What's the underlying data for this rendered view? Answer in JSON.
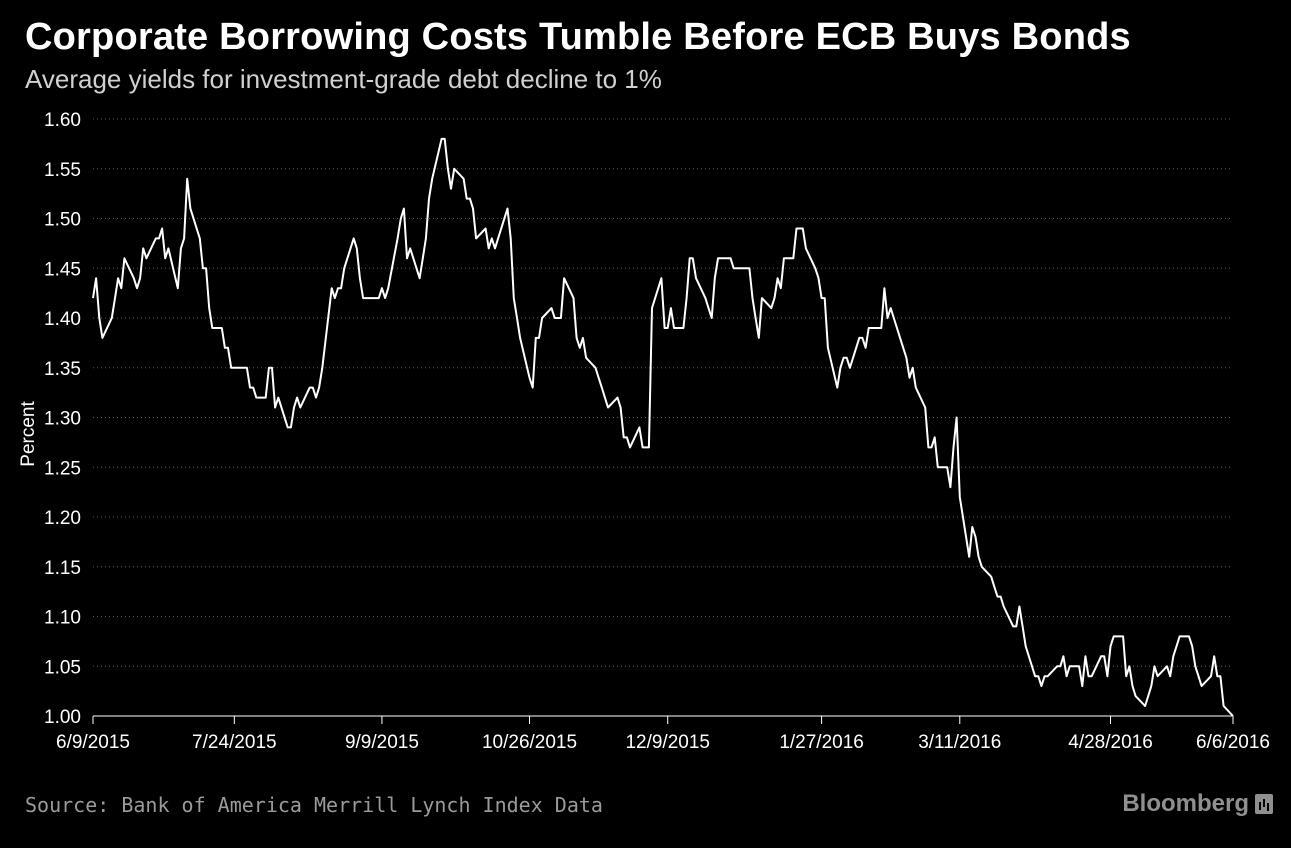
{
  "header": {
    "title": "Corporate Borrowing Costs Tumble Before ECB Buys Bonds",
    "subtitle": "Average yields for investment-grade debt decline to 1%"
  },
  "footer": {
    "source": "Source: Bank of America Merrill Lynch Index Data",
    "logo_text": "Bloomberg",
    "logo_icon": "bloomberg-terminal-icon"
  },
  "colors": {
    "background": "#000000",
    "line": "#ffffff",
    "grid": "#5a5a5a",
    "muted_text": "#9a9a9a"
  },
  "chart_data": {
    "type": "line",
    "title": "Corporate Borrowing Costs Tumble Before ECB Buys Bonds",
    "subtitle": "Average yields for investment-grade debt decline to 1%",
    "xlabel": "",
    "ylabel": "Percent",
    "ylim": [
      1.0,
      1.6
    ],
    "yticks": [
      1.0,
      1.05,
      1.1,
      1.15,
      1.2,
      1.25,
      1.3,
      1.35,
      1.4,
      1.45,
      1.5,
      1.55,
      1.6
    ],
    "ytick_labels": [
      "1.00",
      "1.05",
      "1.10",
      "1.15",
      "1.20",
      "1.25",
      "1.30",
      "1.35",
      "1.40",
      "1.45",
      "1.50",
      "1.55",
      "1.60"
    ],
    "xlim": [
      "6/9/2015",
      "6/6/2016"
    ],
    "xticks": [
      "6/9/2015",
      "7/24/2015",
      "9/9/2015",
      "10/26/2015",
      "12/9/2015",
      "1/27/2016",
      "3/11/2016",
      "4/28/2016",
      "6/6/2016"
    ],
    "grid": true,
    "legend": "none",
    "series": [
      {
        "points": [
          [
            "6/9/2015",
            1.42
          ],
          [
            "6/10/2015",
            1.44
          ],
          [
            "6/11/2015",
            1.4
          ],
          [
            "6/12/2015",
            1.38
          ],
          [
            "6/15/2015",
            1.4
          ],
          [
            "6/16/2015",
            1.42
          ],
          [
            "6/17/2015",
            1.44
          ],
          [
            "6/18/2015",
            1.43
          ],
          [
            "6/19/2015",
            1.46
          ],
          [
            "6/22/2015",
            1.44
          ],
          [
            "6/23/2015",
            1.43
          ],
          [
            "6/24/2015",
            1.44
          ],
          [
            "6/25/2015",
            1.47
          ],
          [
            "6/26/2015",
            1.46
          ],
          [
            "6/29/2015",
            1.48
          ],
          [
            "6/30/2015",
            1.48
          ],
          [
            "7/1/2015",
            1.49
          ],
          [
            "7/2/2015",
            1.46
          ],
          [
            "7/3/2015",
            1.47
          ],
          [
            "7/6/2015",
            1.43
          ],
          [
            "7/7/2015",
            1.47
          ],
          [
            "7/8/2015",
            1.48
          ],
          [
            "7/9/2015",
            1.54
          ],
          [
            "7/10/2015",
            1.51
          ],
          [
            "7/13/2015",
            1.48
          ],
          [
            "7/14/2015",
            1.45
          ],
          [
            "7/15/2015",
            1.45
          ],
          [
            "7/16/2015",
            1.41
          ],
          [
            "7/17/2015",
            1.39
          ],
          [
            "7/20/2015",
            1.39
          ],
          [
            "7/21/2015",
            1.37
          ],
          [
            "7/22/2015",
            1.37
          ],
          [
            "7/23/2015",
            1.35
          ],
          [
            "7/24/2015",
            1.35
          ],
          [
            "7/27/2015",
            1.35
          ],
          [
            "7/28/2015",
            1.35
          ],
          [
            "7/29/2015",
            1.33
          ],
          [
            "7/30/2015",
            1.33
          ],
          [
            "7/31/2015",
            1.32
          ],
          [
            "8/3/2015",
            1.32
          ],
          [
            "8/4/2015",
            1.35
          ],
          [
            "8/5/2015",
            1.35
          ],
          [
            "8/6/2015",
            1.31
          ],
          [
            "8/7/2015",
            1.32
          ],
          [
            "8/10/2015",
            1.29
          ],
          [
            "8/11/2015",
            1.29
          ],
          [
            "8/12/2015",
            1.31
          ],
          [
            "8/13/2015",
            1.32
          ],
          [
            "8/14/2015",
            1.31
          ],
          [
            "8/17/2015",
            1.33
          ],
          [
            "8/18/2015",
            1.33
          ],
          [
            "8/19/2015",
            1.32
          ],
          [
            "8/20/2015",
            1.33
          ],
          [
            "8/21/2015",
            1.35
          ],
          [
            "8/24/2015",
            1.43
          ],
          [
            "8/25/2015",
            1.42
          ],
          [
            "8/26/2015",
            1.43
          ],
          [
            "8/27/2015",
            1.43
          ],
          [
            "8/28/2015",
            1.45
          ],
          [
            "8/31/2015",
            1.48
          ],
          [
            "9/1/2015",
            1.47
          ],
          [
            "9/2/2015",
            1.44
          ],
          [
            "9/3/2015",
            1.42
          ],
          [
            "9/4/2015",
            1.42
          ],
          [
            "9/7/2015",
            1.42
          ],
          [
            "9/8/2015",
            1.42
          ],
          [
            "9/9/2015",
            1.43
          ],
          [
            "9/10/2015",
            1.42
          ],
          [
            "9/11/2015",
            1.43
          ],
          [
            "9/14/2015",
            1.48
          ],
          [
            "9/15/2015",
            1.5
          ],
          [
            "9/16/2015",
            1.51
          ],
          [
            "9/17/2015",
            1.46
          ],
          [
            "9/18/2015",
            1.47
          ],
          [
            "9/21/2015",
            1.44
          ],
          [
            "9/22/2015",
            1.46
          ],
          [
            "9/23/2015",
            1.48
          ],
          [
            "9/24/2015",
            1.52
          ],
          [
            "9/25/2015",
            1.54
          ],
          [
            "9/28/2015",
            1.58
          ],
          [
            "9/29/2015",
            1.58
          ],
          [
            "9/30/2015",
            1.55
          ],
          [
            "10/1/2015",
            1.53
          ],
          [
            "10/2/2015",
            1.55
          ],
          [
            "10/5/2015",
            1.54
          ],
          [
            "10/6/2015",
            1.52
          ],
          [
            "10/7/2015",
            1.52
          ],
          [
            "10/8/2015",
            1.51
          ],
          [
            "10/9/2015",
            1.48
          ],
          [
            "10/12/2015",
            1.49
          ],
          [
            "10/13/2015",
            1.47
          ],
          [
            "10/14/2015",
            1.48
          ],
          [
            "10/15/2015",
            1.47
          ],
          [
            "10/16/2015",
            1.48
          ],
          [
            "10/19/2015",
            1.51
          ],
          [
            "10/20/2015",
            1.48
          ],
          [
            "10/21/2015",
            1.42
          ],
          [
            "10/22/2015",
            1.4
          ],
          [
            "10/23/2015",
            1.38
          ],
          [
            "10/26/2015",
            1.34
          ],
          [
            "10/27/2015",
            1.33
          ],
          [
            "10/28/2015",
            1.38
          ],
          [
            "10/29/2015",
            1.38
          ],
          [
            "10/30/2015",
            1.4
          ],
          [
            "11/2/2015",
            1.41
          ],
          [
            "11/3/2015",
            1.4
          ],
          [
            "11/4/2015",
            1.4
          ],
          [
            "11/5/2015",
            1.4
          ],
          [
            "11/6/2015",
            1.44
          ],
          [
            "11/9/2015",
            1.42
          ],
          [
            "11/10/2015",
            1.38
          ],
          [
            "11/11/2015",
            1.37
          ],
          [
            "11/12/2015",
            1.38
          ],
          [
            "11/13/2015",
            1.36
          ],
          [
            "11/16/2015",
            1.35
          ],
          [
            "11/17/2015",
            1.34
          ],
          [
            "11/18/2015",
            1.33
          ],
          [
            "11/19/2015",
            1.32
          ],
          [
            "11/20/2015",
            1.31
          ],
          [
            "11/23/2015",
            1.32
          ],
          [
            "11/24/2015",
            1.31
          ],
          [
            "11/25/2015",
            1.28
          ],
          [
            "11/26/2015",
            1.28
          ],
          [
            "11/27/2015",
            1.27
          ],
          [
            "11/30/2015",
            1.29
          ],
          [
            "12/1/2015",
            1.27
          ],
          [
            "12/2/2015",
            1.27
          ],
          [
            "12/3/2015",
            1.27
          ],
          [
            "12/4/2015",
            1.41
          ],
          [
            "12/7/2015",
            1.44
          ],
          [
            "12/8/2015",
            1.39
          ],
          [
            "12/9/2015",
            1.39
          ],
          [
            "12/10/2015",
            1.41
          ],
          [
            "12/11/2015",
            1.39
          ],
          [
            "12/14/2015",
            1.39
          ],
          [
            "12/15/2015",
            1.42
          ],
          [
            "12/16/2015",
            1.46
          ],
          [
            "12/17/2015",
            1.46
          ],
          [
            "12/18/2015",
            1.44
          ],
          [
            "12/21/2015",
            1.42
          ],
          [
            "12/22/2015",
            1.41
          ],
          [
            "12/23/2015",
            1.4
          ],
          [
            "12/24/2015",
            1.44
          ],
          [
            "12/25/2015",
            1.46
          ],
          [
            "12/28/2015",
            1.46
          ],
          [
            "12/29/2015",
            1.46
          ],
          [
            "12/30/2015",
            1.45
          ],
          [
            "12/31/2015",
            1.45
          ],
          [
            "1/1/2016",
            1.45
          ],
          [
            "1/4/2016",
            1.45
          ],
          [
            "1/5/2016",
            1.42
          ],
          [
            "1/6/2016",
            1.4
          ],
          [
            "1/7/2016",
            1.38
          ],
          [
            "1/8/2016",
            1.42
          ],
          [
            "1/11/2016",
            1.41
          ],
          [
            "1/12/2016",
            1.42
          ],
          [
            "1/13/2016",
            1.44
          ],
          [
            "1/14/2016",
            1.43
          ],
          [
            "1/15/2016",
            1.46
          ],
          [
            "1/18/2016",
            1.46
          ],
          [
            "1/19/2016",
            1.49
          ],
          [
            "1/20/2016",
            1.49
          ],
          [
            "1/21/2016",
            1.49
          ],
          [
            "1/22/2016",
            1.47
          ],
          [
            "1/25/2016",
            1.45
          ],
          [
            "1/26/2016",
            1.44
          ],
          [
            "1/27/2016",
            1.42
          ],
          [
            "1/28/2016",
            1.42
          ],
          [
            "1/29/2016",
            1.37
          ],
          [
            "2/1/2016",
            1.33
          ],
          [
            "2/2/2016",
            1.35
          ],
          [
            "2/3/2016",
            1.36
          ],
          [
            "2/4/2016",
            1.36
          ],
          [
            "2/5/2016",
            1.35
          ],
          [
            "2/8/2016",
            1.38
          ],
          [
            "2/9/2016",
            1.38
          ],
          [
            "2/10/2016",
            1.37
          ],
          [
            "2/11/2016",
            1.39
          ],
          [
            "2/12/2016",
            1.39
          ],
          [
            "2/15/2016",
            1.39
          ],
          [
            "2/16/2016",
            1.43
          ],
          [
            "2/17/2016",
            1.4
          ],
          [
            "2/18/2016",
            1.41
          ],
          [
            "2/19/2016",
            1.4
          ],
          [
            "2/22/2016",
            1.37
          ],
          [
            "2/23/2016",
            1.36
          ],
          [
            "2/24/2016",
            1.34
          ],
          [
            "2/25/2016",
            1.35
          ],
          [
            "2/26/2016",
            1.33
          ],
          [
            "2/29/2016",
            1.31
          ],
          [
            "3/1/2016",
            1.27
          ],
          [
            "3/2/2016",
            1.27
          ],
          [
            "3/3/2016",
            1.28
          ],
          [
            "3/4/2016",
            1.25
          ],
          [
            "3/7/2016",
            1.25
          ],
          [
            "3/8/2016",
            1.23
          ],
          [
            "3/9/2016",
            1.27
          ],
          [
            "3/10/2016",
            1.3
          ],
          [
            "3/11/2016",
            1.22
          ],
          [
            "3/14/2016",
            1.16
          ],
          [
            "3/15/2016",
            1.19
          ],
          [
            "3/16/2016",
            1.18
          ],
          [
            "3/17/2016",
            1.16
          ],
          [
            "3/18/2016",
            1.15
          ],
          [
            "3/21/2016",
            1.14
          ],
          [
            "3/22/2016",
            1.13
          ],
          [
            "3/23/2016",
            1.12
          ],
          [
            "3/24/2016",
            1.12
          ],
          [
            "3/25/2016",
            1.11
          ],
          [
            "3/28/2016",
            1.09
          ],
          [
            "3/29/2016",
            1.09
          ],
          [
            "3/30/2016",
            1.11
          ],
          [
            "3/31/2016",
            1.09
          ],
          [
            "4/1/2016",
            1.07
          ],
          [
            "4/4/2016",
            1.04
          ],
          [
            "4/5/2016",
            1.04
          ],
          [
            "4/6/2016",
            1.03
          ],
          [
            "4/7/2016",
            1.04
          ],
          [
            "4/8/2016",
            1.04
          ],
          [
            "4/11/2016",
            1.05
          ],
          [
            "4/12/2016",
            1.05
          ],
          [
            "4/13/2016",
            1.06
          ],
          [
            "4/14/2016",
            1.04
          ],
          [
            "4/15/2016",
            1.05
          ],
          [
            "4/18/2016",
            1.05
          ],
          [
            "4/19/2016",
            1.03
          ],
          [
            "4/20/2016",
            1.06
          ],
          [
            "4/21/2016",
            1.04
          ],
          [
            "4/22/2016",
            1.04
          ],
          [
            "4/25/2016",
            1.06
          ],
          [
            "4/26/2016",
            1.06
          ],
          [
            "4/27/2016",
            1.04
          ],
          [
            "4/28/2016",
            1.07
          ],
          [
            "4/29/2016",
            1.08
          ],
          [
            "5/2/2016",
            1.08
          ],
          [
            "5/3/2016",
            1.04
          ],
          [
            "5/4/2016",
            1.05
          ],
          [
            "5/5/2016",
            1.03
          ],
          [
            "5/6/2016",
            1.02
          ],
          [
            "5/9/2016",
            1.01
          ],
          [
            "5/10/2016",
            1.02
          ],
          [
            "5/11/2016",
            1.03
          ],
          [
            "5/12/2016",
            1.05
          ],
          [
            "5/13/2016",
            1.04
          ],
          [
            "5/16/2016",
            1.05
          ],
          [
            "5/17/2016",
            1.04
          ],
          [
            "5/18/2016",
            1.06
          ],
          [
            "5/19/2016",
            1.07
          ],
          [
            "5/20/2016",
            1.08
          ],
          [
            "5/23/2016",
            1.08
          ],
          [
            "5/24/2016",
            1.07
          ],
          [
            "5/25/2016",
            1.05
          ],
          [
            "5/26/2016",
            1.04
          ],
          [
            "5/27/2016",
            1.03
          ],
          [
            "5/30/2016",
            1.04
          ],
          [
            "5/31/2016",
            1.06
          ],
          [
            "6/1/2016",
            1.04
          ],
          [
            "6/2/2016",
            1.04
          ],
          [
            "6/3/2016",
            1.01
          ],
          [
            "6/6/2016",
            1.0
          ]
        ]
      }
    ]
  }
}
